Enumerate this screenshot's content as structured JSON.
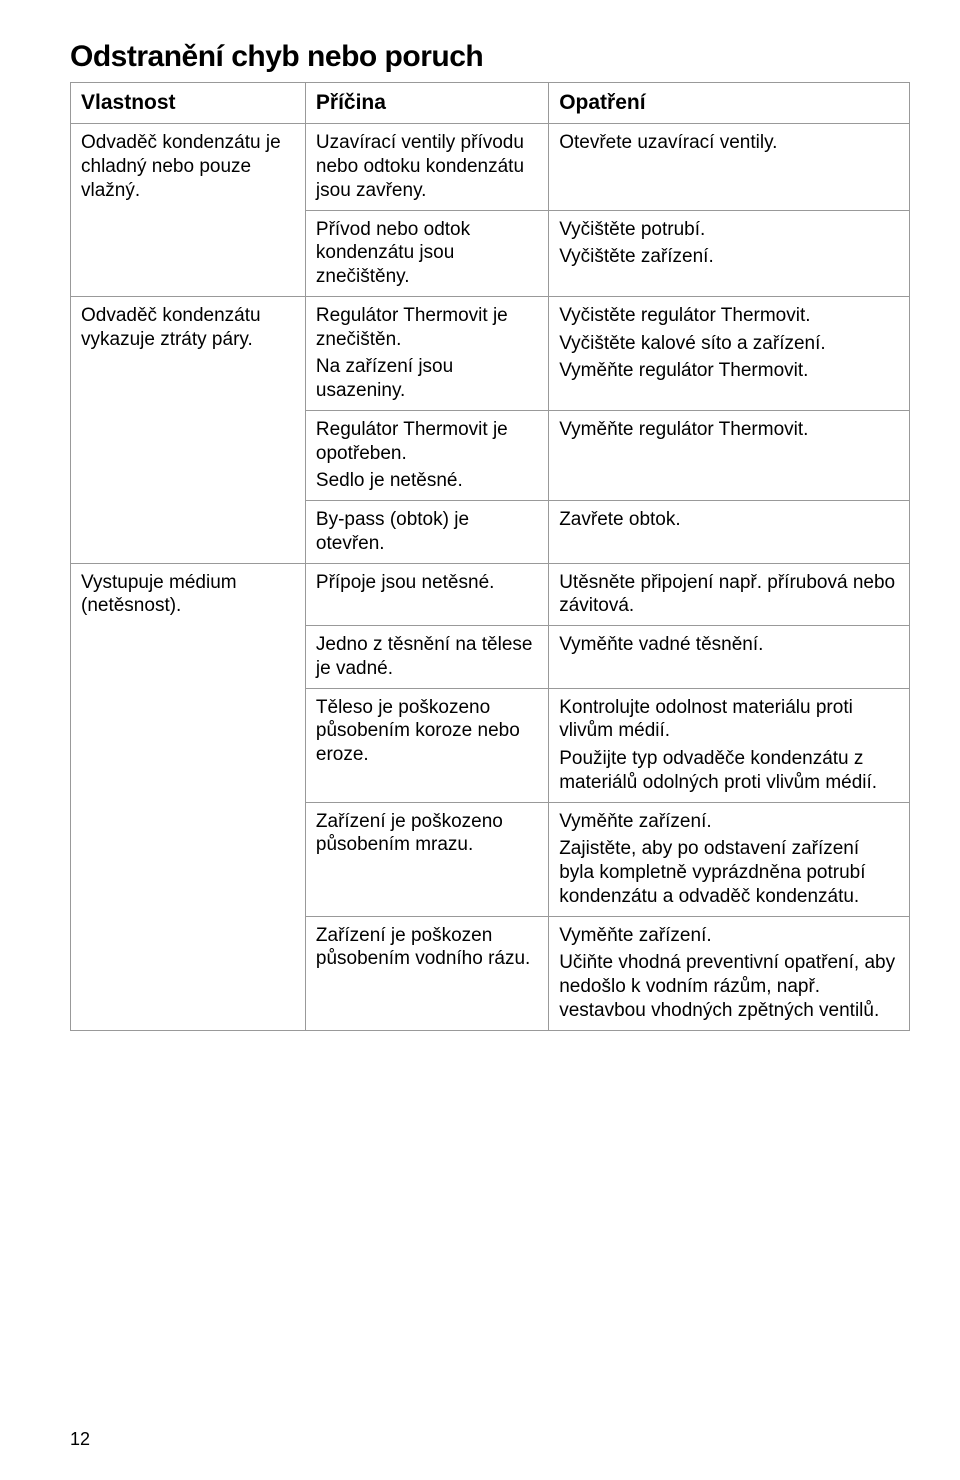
{
  "title": "Odstranění chyb nebo poruch",
  "pageNumber": "12",
  "headers": [
    "Vlastnost",
    "Příčina",
    "Opatření"
  ],
  "rows": [
    {
      "c0": {
        "text": "Odvaděč kondenzátu je chladný nebo pouze vlažný.",
        "rowspan": 2
      },
      "c1": {
        "text": "Uzavírací ventily přívodu nebo odtoku kondenzátu jsou zavřeny."
      },
      "c2": {
        "text": "Otevřete uzavírací ventily."
      }
    },
    {
      "c1": {
        "text": "Přívod nebo odtok kondenzátu jsou znečištěny."
      },
      "c2": {
        "paras": [
          "Vyčištěte potrubí.",
          "Vyčištěte zařízení."
        ]
      }
    },
    {
      "c0": {
        "text": "Odvaděč kondenzátu vykazuje ztráty páry.",
        "rowspan": 3
      },
      "c1": {
        "paras": [
          "Regulátor Thermovit je znečištěn.",
          "Na zařízení jsou usazeniny."
        ]
      },
      "c2": {
        "paras": [
          "Vyčistěte regulátor Thermovit.",
          "Vyčištěte kalové síto a zařízení.",
          "Vyměňte regulátor Thermovit."
        ]
      }
    },
    {
      "c1": {
        "paras": [
          "Regulátor Thermovit je opotřeben.",
          "Sedlo je netěsné."
        ]
      },
      "c2": {
        "text": "Vyměňte regulátor Thermovit."
      }
    },
    {
      "c1": {
        "text": "By-pass (obtok) je otevřen."
      },
      "c2": {
        "text": "Zavřete obtok."
      }
    },
    {
      "c0": {
        "text": "Vystupuje médium (netěsnost).",
        "rowspan": 5
      },
      "c1": {
        "text": "Přípoje jsou netěsné."
      },
      "c2": {
        "text": "Utěsněte připojení např. přírubová nebo závitová."
      }
    },
    {
      "c1": {
        "text": "Jedno z těsnění na tělese je vadné."
      },
      "c2": {
        "text": "Vyměňte vadné těsnění."
      }
    },
    {
      "c1": {
        "text": "Těleso je poškozeno působením koroze nebo eroze."
      },
      "c2": {
        "paras": [
          "Kontrolujte odolnost materiálu proti vlivům médií.",
          "Použijte typ odvaděče kondenzátu z materiálů odolných proti vlivům médií."
        ]
      }
    },
    {
      "c1": {
        "text": "Zařízení je poškozeno působením mrazu."
      },
      "c2": {
        "paras": [
          "Vyměňte zařízení.",
          "Zajistěte, aby po odstavení zařízení byla kompletně vyprázdněna potrubí kondenzátu a odvaděč kondenzátu."
        ]
      }
    },
    {
      "c1": {
        "text": "Zařízení je poškozen působením vodního rázu."
      },
      "c2": {
        "paras": [
          "Vyměňte zařízení.",
          "Učiňte vhodná preventivní opatření, aby nedošlo k vodním rázům, např. vestavbou vhodných zpětných ventilů."
        ]
      }
    }
  ]
}
